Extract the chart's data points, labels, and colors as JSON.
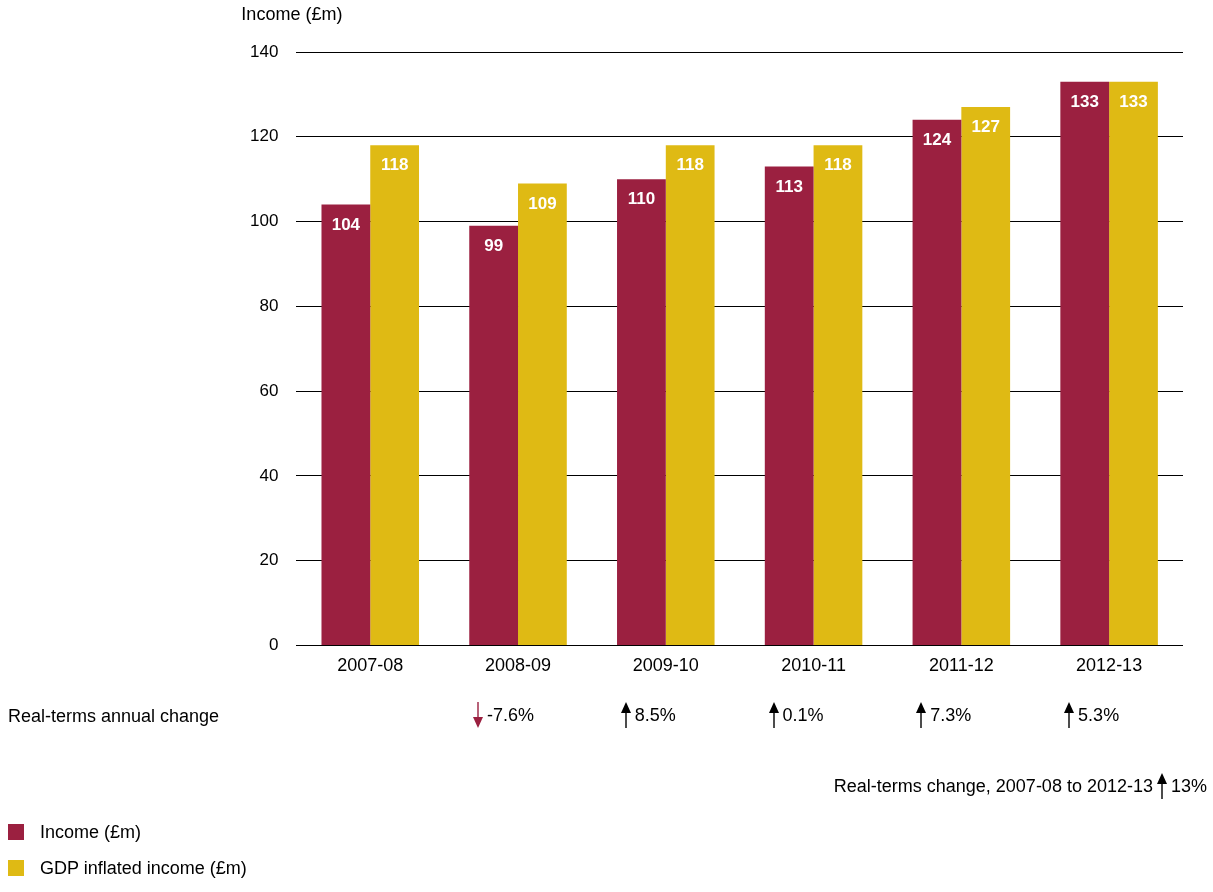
{
  "chart_data": {
    "type": "bar",
    "ylabel": "Income (£m)",
    "categories": [
      "2007-08",
      "2008-09",
      "2009-10",
      "2010-11",
      "2011-12",
      "2012-13"
    ],
    "series": [
      {
        "name": "Income (£m)",
        "color": "#9b2040",
        "values": [
          104,
          99,
          110,
          113,
          124,
          133
        ]
      },
      {
        "name": "GDP inflated income (£m)",
        "color": "#dfba14",
        "values": [
          118,
          109,
          118,
          118,
          127,
          133
        ]
      }
    ],
    "ylim": [
      0,
      140
    ],
    "yticks": [
      0,
      20,
      40,
      60,
      80,
      100,
      120,
      140
    ],
    "grid": "y",
    "data_labels": true,
    "legend": "bottom left",
    "annotations": [
      "Real-terms annual change",
      "-7.6%",
      "8.5%",
      "0.1%",
      "7.3%",
      "5.3%",
      "Real-terms change, 2007-08 to 2012-13",
      "13%"
    ]
  }
}
